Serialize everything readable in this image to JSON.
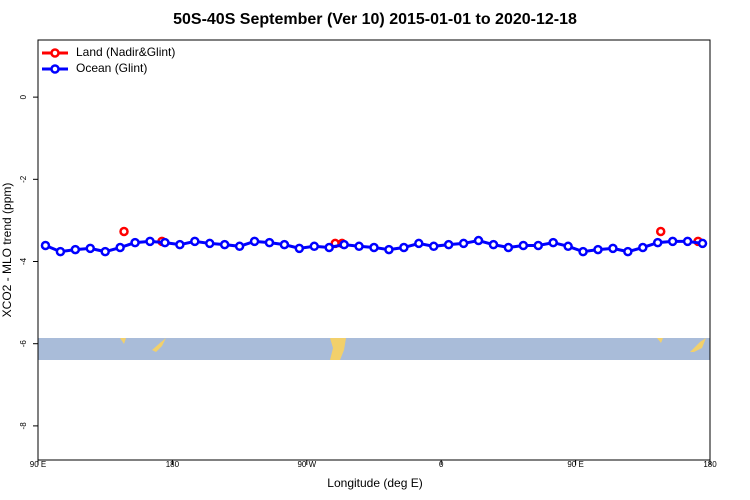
{
  "chart_data": {
    "type": "line",
    "title": "50S-40S September (Ver 10)   2015-01-01 to 2020-12-18",
    "x_label": "Longitude (deg E)",
    "y_label": "XCO2 - MLO trend (ppm)",
    "xlim": [
      90,
      540
    ],
    "ylim": [
      -8.83,
      1.39
    ],
    "xticks": [
      {
        "value": 90,
        "label": "90 E"
      },
      180,
      {
        "value": 270,
        "label": "90 W"
      },
      {
        "value": 360,
        "label": "0"
      },
      {
        "value": 450,
        "label": "90 E"
      },
      {
        "value": 540,
        "label": "180"
      }
    ],
    "yticks": [
      0,
      -2,
      -4,
      -6,
      -8
    ],
    "legend": "top-left",
    "series": [
      {
        "name": "Land (Nadir&Glint)",
        "color": "#ff0000",
        "lines": false,
        "x": [
          147.6,
          173,
          289,
          293.6,
          507,
          532
        ],
        "values": [
          -3.27,
          -3.51,
          -3.56,
          -3.56,
          -3.27,
          -3.51
        ]
      },
      {
        "name": "Ocean (Glint)",
        "color": "#0000ff",
        "lines": true,
        "x": [
          95,
          105,
          115,
          125,
          135,
          145,
          155,
          165,
          175,
          185,
          195,
          205,
          215,
          225,
          235,
          245,
          255,
          265,
          275,
          285,
          295,
          305,
          315,
          325,
          335,
          345,
          355,
          365,
          375,
          385,
          395,
          405,
          415,
          425,
          435,
          445,
          455,
          465,
          475,
          485,
          495,
          505,
          515,
          525,
          535
        ],
        "values": [
          -3.61,
          -3.76,
          -3.71,
          -3.68,
          -3.76,
          -3.66,
          -3.54,
          -3.51,
          -3.54,
          -3.59,
          -3.51,
          -3.56,
          -3.59,
          -3.63,
          -3.51,
          -3.54,
          -3.59,
          -3.68,
          -3.63,
          -3.66,
          -3.59,
          -3.63,
          -3.66,
          -3.71,
          -3.66,
          -3.56,
          -3.63,
          -3.59,
          -3.56,
          -3.49,
          -3.59,
          -3.66,
          -3.61,
          -3.61,
          -3.54,
          -3.63,
          -3.76,
          -3.71,
          -3.68,
          -3.76,
          -3.66,
          -3.54,
          -3.51,
          -3.51,
          -3.56
        ]
      }
    ]
  }
}
